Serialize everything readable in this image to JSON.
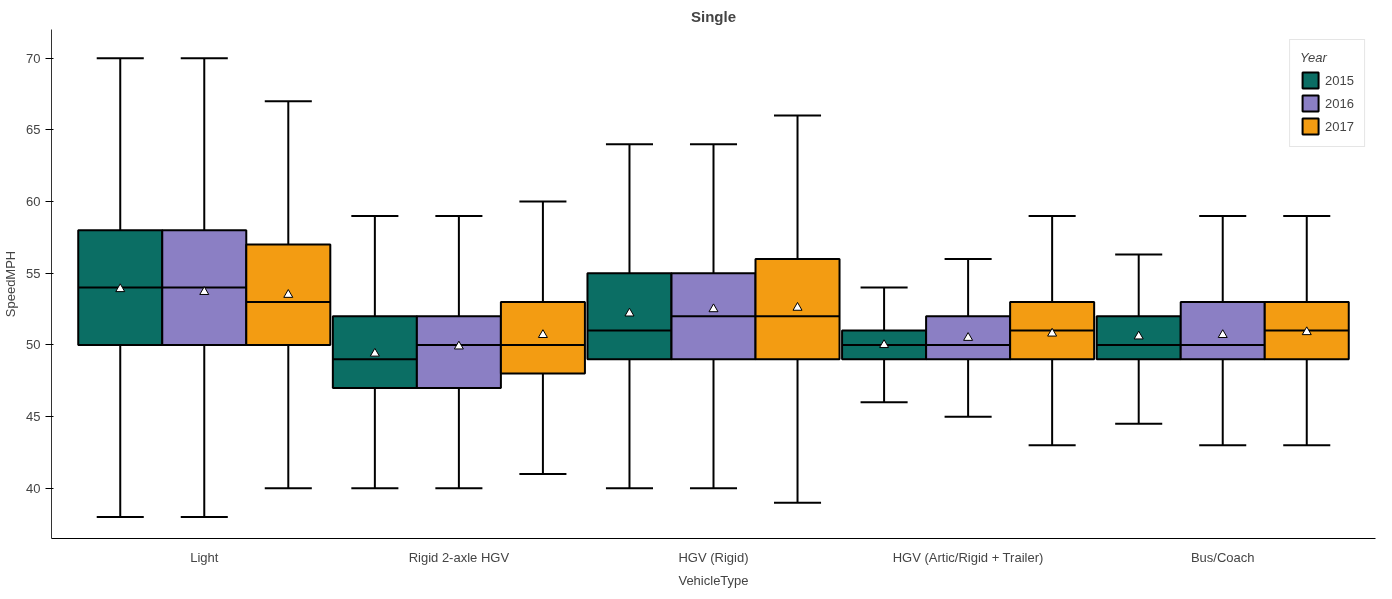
{
  "chart_data": {
    "type": "box",
    "title": "Single",
    "xlabel": "VehicleType",
    "ylabel": "SpeedMPH",
    "legend_title": "Year",
    "legend": "top right",
    "marker": "triangle",
    "categories": [
      "Light",
      "Rigid 2-axle HGV",
      "HGV (Rigid)",
      "HGV (Artic/Rigid + Trailer)",
      "Bus/Coach"
    ],
    "ylim": [
      36.5,
      72
    ],
    "yticks": [
      40,
      45,
      50,
      55,
      60,
      65,
      70
    ],
    "series": [
      {
        "name": "2015",
        "color": "#0b6e64",
        "boxes": [
          {
            "low": 38,
            "q1": 50,
            "median": 54,
            "q3": 58,
            "high": 70,
            "mean": 53.9
          },
          {
            "low": 40,
            "q1": 47,
            "median": 49,
            "q3": 52,
            "high": 59,
            "mean": 49.4
          },
          {
            "low": 40,
            "q1": 49,
            "median": 51,
            "q3": 55,
            "high": 64,
            "mean": 52.2
          },
          {
            "low": 46,
            "q1": 49,
            "median": 50,
            "q3": 51,
            "high": 54,
            "mean": 50.0
          },
          {
            "low": 44.5,
            "q1": 49,
            "median": 50,
            "q3": 52,
            "high": 56.3,
            "mean": 50.6
          }
        ]
      },
      {
        "name": "2016",
        "color": "#8b7fc4",
        "boxes": [
          {
            "low": 38,
            "q1": 50,
            "median": 54,
            "q3": 58,
            "high": 70,
            "mean": 53.7
          },
          {
            "low": 40,
            "q1": 47,
            "median": 50,
            "q3": 52,
            "high": 59,
            "mean": 49.9
          },
          {
            "low": 40,
            "q1": 49,
            "median": 52,
            "q3": 55,
            "high": 64,
            "mean": 52.5
          },
          {
            "low": 45,
            "q1": 49,
            "median": 50,
            "q3": 52,
            "high": 56,
            "mean": 50.5
          },
          {
            "low": 43,
            "q1": 49,
            "median": 50,
            "q3": 53,
            "high": 59,
            "mean": 50.7
          }
        ]
      },
      {
        "name": "2017",
        "color": "#f39c12",
        "boxes": [
          {
            "low": 40,
            "q1": 50,
            "median": 53,
            "q3": 57,
            "high": 67,
            "mean": 53.5
          },
          {
            "low": 41,
            "q1": 48,
            "median": 50,
            "q3": 53,
            "high": 60,
            "mean": 50.7
          },
          {
            "low": 39,
            "q1": 49,
            "median": 52,
            "q3": 56,
            "high": 66,
            "mean": 52.6
          },
          {
            "low": 43,
            "q1": 49,
            "median": 51,
            "q3": 53,
            "high": 59,
            "mean": 50.8
          },
          {
            "low": 43,
            "q1": 49,
            "median": 51,
            "q3": 53,
            "high": 59,
            "mean": 50.9
          }
        ]
      }
    ]
  }
}
